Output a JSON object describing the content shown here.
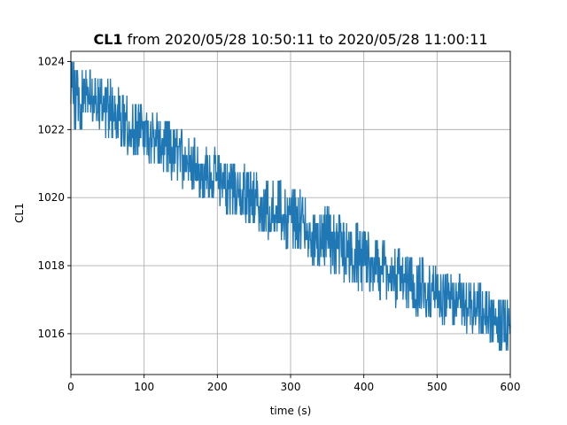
{
  "chart_data": {
    "type": "line",
    "title_bold": "CL1",
    "title_rest": " from 2020/05/28 10:50:11 to 2020/05/28 11:00:11",
    "xlabel": "time (s)",
    "ylabel": "CL1",
    "xlim": [
      0,
      600
    ],
    "ylim": [
      1014.8,
      1024.3
    ],
    "xticks": [
      0,
      100,
      200,
      300,
      400,
      500,
      600
    ],
    "yticks": [
      1016,
      1018,
      1020,
      1022,
      1024
    ],
    "grid": true,
    "series": [
      {
        "color": "#1f77b4",
        "trend_x": [
          0,
          50,
          100,
          150,
          200,
          250,
          300,
          350,
          400,
          450,
          500,
          550,
          600
        ],
        "trend_y": [
          1023.0,
          1022.6,
          1021.9,
          1021.2,
          1020.5,
          1019.9,
          1019.4,
          1018.8,
          1018.1,
          1017.5,
          1017.0,
          1016.7,
          1016.0
        ],
        "band_low": [
          1022.2,
          1021.8,
          1021.2,
          1020.5,
          1019.8,
          1019.2,
          1018.6,
          1018.0,
          1017.4,
          1016.9,
          1016.5,
          1016.1,
          1015.4
        ],
        "band_high": [
          1023.9,
          1023.3,
          1022.6,
          1021.9,
          1021.2,
          1020.7,
          1020.2,
          1019.6,
          1019.0,
          1018.4,
          1017.8,
          1017.4,
          1016.8
        ]
      }
    ]
  }
}
